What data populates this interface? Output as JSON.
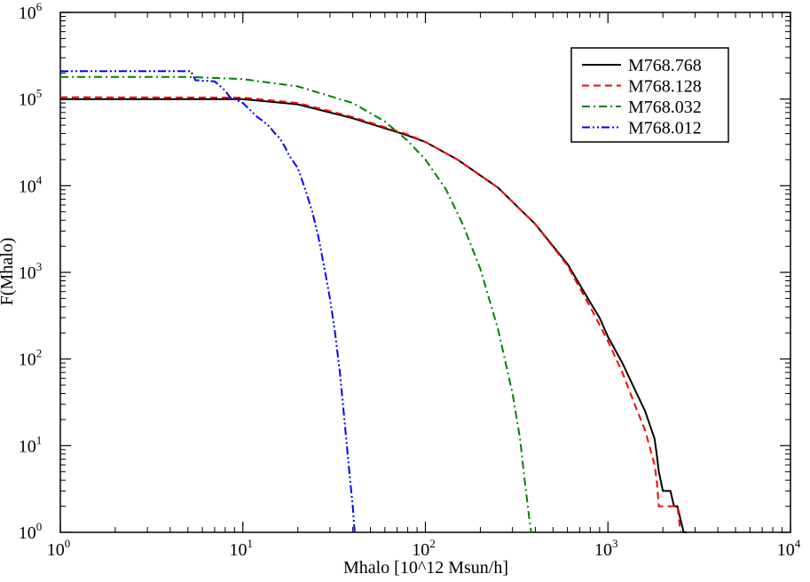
{
  "chart_data": {
    "type": "line",
    "title": "",
    "xlabel": "Mhalo [10^12 Msun/h]",
    "ylabel": "F(Mhalo)",
    "xscale": "log",
    "yscale": "log",
    "xlim": [
      1,
      10000
    ],
    "ylim": [
      1,
      1000000
    ],
    "grid": false,
    "legend_position": "top-right",
    "x_ticks": [
      {
        "base": "10",
        "exp": "0",
        "value": 1
      },
      {
        "base": "10",
        "exp": "1",
        "value": 10
      },
      {
        "base": "10",
        "exp": "2",
        "value": 100
      },
      {
        "base": "10",
        "exp": "3",
        "value": 1000
      },
      {
        "base": "10",
        "exp": "4",
        "value": 10000
      }
    ],
    "y_ticks": [
      {
        "base": "10",
        "exp": "0",
        "value": 1
      },
      {
        "base": "10",
        "exp": "1",
        "value": 10
      },
      {
        "base": "10",
        "exp": "2",
        "value": 100
      },
      {
        "base": "10",
        "exp": "3",
        "value": 1000
      },
      {
        "base": "10",
        "exp": "4",
        "value": 10000
      },
      {
        "base": "10",
        "exp": "5",
        "value": 100000
      },
      {
        "base": "10",
        "exp": "6",
        "value": 1000000
      }
    ],
    "series": [
      {
        "name": "M768.768",
        "color": "#000000",
        "dash": "solid",
        "x": [
          1,
          10,
          20,
          40,
          80,
          100,
          150,
          250,
          400,
          600,
          800,
          900,
          1000,
          1200,
          1400,
          1600,
          1800,
          1850,
          1900,
          2000,
          2200,
          2300,
          2400,
          2600,
          2700
        ],
        "y": [
          100000,
          100000,
          87000,
          60000,
          38000,
          32000,
          20000,
          9500,
          3600,
          1250,
          450,
          300,
          180,
          90,
          45,
          25,
          12,
          8,
          5,
          3,
          3,
          2,
          2,
          1,
          1
        ]
      },
      {
        "name": "M768.128",
        "color": "#ff0000",
        "dash": "dashed",
        "x": [
          1,
          10,
          20,
          40,
          80,
          100,
          150,
          250,
          400,
          600,
          800,
          1000,
          1200,
          1400,
          1600,
          1800,
          1850,
          1900,
          2000,
          2200,
          2400,
          2500
        ],
        "y": [
          105000,
          104000,
          90000,
          62000,
          39000,
          32000,
          20000,
          9500,
          3600,
          1200,
          400,
          160,
          70,
          30,
          15,
          6,
          4,
          2,
          2,
          2,
          2,
          1
        ]
      },
      {
        "name": "M768.032",
        "color": "#008000",
        "dash": "dash-dot",
        "x": [
          1,
          5,
          10,
          20,
          40,
          60,
          80,
          100,
          130,
          160,
          200,
          250,
          300,
          330,
          350,
          370,
          380
        ],
        "y": [
          180000,
          180000,
          170000,
          140000,
          90000,
          55000,
          33000,
          20000,
          9000,
          3600,
          1100,
          220,
          40,
          12,
          4,
          1.5,
          1
        ]
      },
      {
        "name": "M768.012",
        "color": "#0000ff",
        "dash": "dash-dot-dot",
        "x": [
          1,
          5.2,
          5.5,
          7,
          8,
          8.5,
          10,
          12,
          13,
          14,
          15,
          16,
          17,
          18,
          20,
          22,
          24,
          26,
          28,
          30,
          32,
          34,
          36,
          38,
          40,
          41
        ],
        "y": [
          210000,
          210000,
          165000,
          160000,
          125000,
          105000,
          90000,
          62000,
          55000,
          48000,
          40000,
          35000,
          28000,
          22000,
          16000,
          9000,
          5000,
          2500,
          1100,
          500,
          200,
          70,
          20,
          6,
          2,
          1
        ]
      }
    ]
  }
}
